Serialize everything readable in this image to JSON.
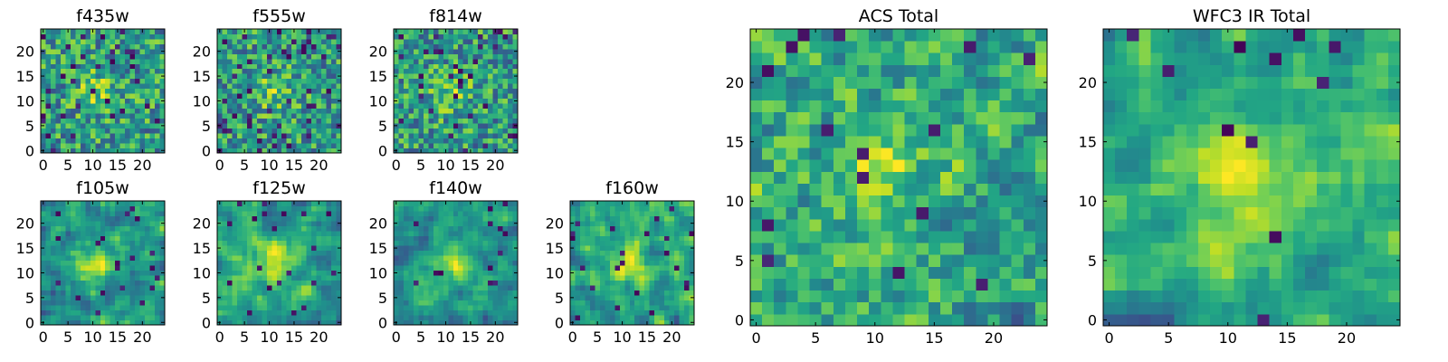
{
  "chart_data": [
    {
      "type": "heatmap",
      "title": "f435w",
      "xticks": [
        "0",
        "5",
        "10",
        "15",
        "20"
      ],
      "yticks": [
        "0",
        "5",
        "10",
        "15",
        "20"
      ],
      "size": 25,
      "seed": 11,
      "style": "noise",
      "darkness": 0.06
    },
    {
      "type": "heatmap",
      "title": "f555w",
      "xticks": [
        "0",
        "5",
        "10",
        "15",
        "20"
      ],
      "yticks": [
        "0",
        "5",
        "10",
        "15",
        "20"
      ],
      "size": 25,
      "seed": 23,
      "style": "noise",
      "darkness": 0.07
    },
    {
      "type": "heatmap",
      "title": "f814w",
      "xticks": [
        "0",
        "5",
        "10",
        "15",
        "20"
      ],
      "yticks": [
        "0",
        "5",
        "10",
        "15",
        "20"
      ],
      "size": 25,
      "seed": 37,
      "style": "noise",
      "darkness": 0.06
    },
    {
      "type": "heatmap",
      "title": "f105w",
      "xticks": [
        "0",
        "5",
        "10",
        "15",
        "20"
      ],
      "yticks": [
        "0",
        "5",
        "10",
        "15",
        "20"
      ],
      "size": 25,
      "seed": 41,
      "style": "smooth",
      "darkness": 0.03
    },
    {
      "type": "heatmap",
      "title": "f125w",
      "xticks": [
        "0",
        "5",
        "10",
        "15",
        "20"
      ],
      "yticks": [
        "0",
        "5",
        "10",
        "15",
        "20"
      ],
      "size": 25,
      "seed": 53,
      "style": "smooth",
      "darkness": 0.04
    },
    {
      "type": "heatmap",
      "title": "f140w",
      "xticks": [
        "0",
        "5",
        "10",
        "15",
        "20"
      ],
      "yticks": [
        "0",
        "5",
        "10",
        "15",
        "20"
      ],
      "size": 25,
      "seed": 67,
      "style": "smooth",
      "darkness": 0.02
    },
    {
      "type": "heatmap",
      "title": "f160w",
      "xticks": [
        "0",
        "5",
        "10",
        "15",
        "20"
      ],
      "yticks": [
        "0",
        "5",
        "10",
        "15",
        "20"
      ],
      "size": 25,
      "seed": 79,
      "style": "smooth",
      "darkness": 0.05
    },
    {
      "type": "heatmap",
      "title": "ACS Total",
      "xticks": [
        "0",
        "5",
        "10",
        "15",
        "20"
      ],
      "yticks": [
        "0",
        "5",
        "10",
        "15",
        "20"
      ],
      "size": 25,
      "seed": 83,
      "style": "mixed",
      "darkness": 0.03
    },
    {
      "type": "heatmap",
      "title": "WFC3 IR Total",
      "xticks": [
        "0",
        "5",
        "10",
        "15",
        "20"
      ],
      "yticks": [
        "0",
        "5",
        "10",
        "15",
        "20"
      ],
      "size": 25,
      "seed": 97,
      "style": "smooth",
      "darkness": 0.02
    }
  ],
  "colors": {
    "colormap": "viridis",
    "frame": "#000000",
    "background": "#ffffff"
  }
}
